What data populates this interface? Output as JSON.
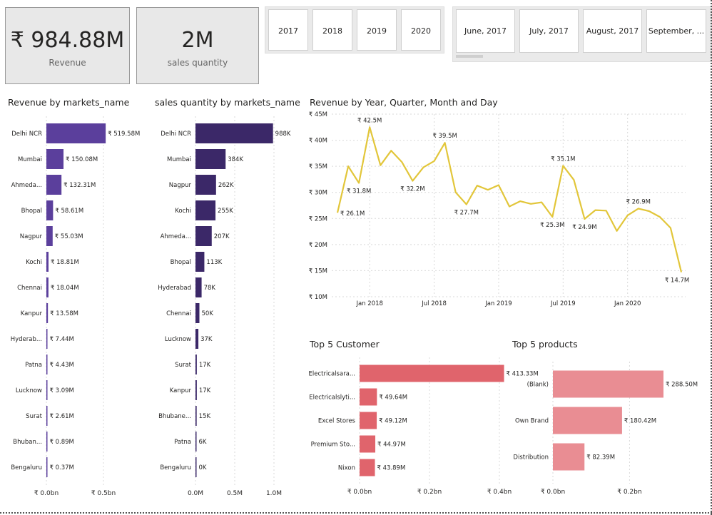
{
  "kpis": {
    "revenue": {
      "value": "₹ 984.88M",
      "label": "Revenue"
    },
    "quantity": {
      "value": "2M",
      "label": "sales quantity"
    }
  },
  "year_slicer": [
    "2017",
    "2018",
    "2019",
    "2020"
  ],
  "month_slicer": [
    "June, 2017",
    "July, 2017",
    "August, 2017",
    "September, ..."
  ],
  "colors": {
    "revenue_bar": "#5b3f9c",
    "quantity_bar": "#3b2868",
    "line": "#e2c63a",
    "customer_bar": "#e0646c",
    "product_bar": "#e98d93"
  },
  "charts": {
    "revenue_by_market": {
      "title": "Revenue by markets_name",
      "chart_data": {
        "type": "bar",
        "orientation": "horizontal",
        "categories": [
          "Delhi NCR",
          "Mumbai",
          "Ahmeda...",
          "Bhopal",
          "Nagpur",
          "Kochi",
          "Chennai",
          "Kanpur",
          "Hyderab...",
          "Patna",
          "Lucknow",
          "Surat",
          "Bhuban...",
          "Bengaluru"
        ],
        "values": [
          519.58,
          150.08,
          132.31,
          58.61,
          55.03,
          18.81,
          18.04,
          13.58,
          7.44,
          4.43,
          3.09,
          2.61,
          0.89,
          0.37
        ],
        "unit": "M",
        "data_labels": [
          "₹ 519.58M",
          "₹ 150.08M",
          "₹ 132.31M",
          "₹ 58.61M",
          "₹ 55.03M",
          "₹ 18.81M",
          "₹ 18.04M",
          "₹ 13.58M",
          "₹ 7.44M",
          "₹ 4.43M",
          "₹ 3.09M",
          "₹ 2.61M",
          "₹ 0.89M",
          "₹ 0.37M"
        ],
        "xlim": [
          0,
          600
        ],
        "xticks": [
          0,
          500
        ],
        "xtick_labels": [
          "₹ 0.0bn",
          "₹ 0.5bn"
        ]
      }
    },
    "quantity_by_market": {
      "title": "sales quantity by markets_name",
      "chart_data": {
        "type": "bar",
        "orientation": "horizontal",
        "categories": [
          "Delhi NCR",
          "Mumbai",
          "Nagpur",
          "Kochi",
          "Ahmeda...",
          "Bhopal",
          "Hyderabad",
          "Chennai",
          "Lucknow",
          "Surat",
          "Kanpur",
          "Bhubane...",
          "Patna",
          "Bengaluru"
        ],
        "values": [
          988,
          384,
          262,
          255,
          207,
          113,
          78,
          50,
          37,
          17,
          17,
          15,
          6,
          0
        ],
        "unit": "K",
        "data_labels": [
          "988K",
          "384K",
          "262K",
          "255K",
          "207K",
          "113K",
          "78K",
          "50K",
          "37K",
          "17K",
          "17K",
          "15K",
          "6K",
          "0K"
        ],
        "xlim": [
          0,
          1000
        ],
        "xticks": [
          0,
          500,
          1000
        ],
        "xtick_labels": [
          "0.0M",
          "0.5M",
          "1.0M"
        ]
      }
    },
    "revenue_trend": {
      "title": "Revenue by Year, Quarter, Month and Day",
      "chart_data": {
        "type": "line",
        "x": [
          "2017-10",
          "2017-11",
          "2017-12",
          "2018-01",
          "2018-02",
          "2018-03",
          "2018-04",
          "2018-05",
          "2018-06",
          "2018-07",
          "2018-08",
          "2018-09",
          "2018-10",
          "2018-11",
          "2018-12",
          "2019-01",
          "2019-02",
          "2019-03",
          "2019-04",
          "2019-05",
          "2019-06",
          "2019-07",
          "2019-08",
          "2019-09",
          "2019-10",
          "2019-11",
          "2019-12",
          "2020-01",
          "2020-02",
          "2020-03",
          "2020-04",
          "2020-05",
          "2020-06"
        ],
        "values": [
          26.1,
          35.0,
          31.8,
          42.5,
          35.2,
          38.0,
          35.8,
          32.2,
          34.8,
          36.0,
          39.5,
          30.0,
          27.7,
          31.3,
          30.5,
          31.4,
          27.3,
          28.3,
          27.8,
          28.1,
          25.3,
          35.1,
          32.4,
          24.9,
          26.6,
          26.5,
          22.6,
          25.6,
          26.9,
          26.4,
          25.3,
          23.2,
          14.7
        ],
        "unit": "M",
        "point_labels": [
          {
            "index": 0,
            "text": "₹ 26.1M",
            "pos": "right"
          },
          {
            "index": 2,
            "text": "₹ 31.8M",
            "pos": "below"
          },
          {
            "index": 3,
            "text": "₹ 42.5M",
            "pos": "above"
          },
          {
            "index": 7,
            "text": "₹ 32.2M",
            "pos": "below"
          },
          {
            "index": 10,
            "text": "₹ 39.5M",
            "pos": "above"
          },
          {
            "index": 12,
            "text": "₹ 27.7M",
            "pos": "below"
          },
          {
            "index": 20,
            "text": "₹ 25.3M",
            "pos": "below"
          },
          {
            "index": 21,
            "text": "₹ 35.1M",
            "pos": "above"
          },
          {
            "index": 23,
            "text": "₹ 24.9M",
            "pos": "below"
          },
          {
            "index": 28,
            "text": "₹ 26.9M",
            "pos": "above"
          },
          {
            "index": 32,
            "text": "₹ 14.7M",
            "pos": "below"
          }
        ],
        "ylim": [
          10,
          45
        ],
        "yticks": [
          10,
          15,
          20,
          25,
          30,
          35,
          40,
          45
        ],
        "ytick_labels": [
          "₹ 10M",
          "₹ 15M",
          "₹ 20M",
          "₹ 25M",
          "₹ 30M",
          "₹ 35M",
          "₹ 40M",
          "₹ 45M"
        ],
        "xtick_index": [
          3,
          9,
          15,
          21,
          27
        ],
        "xtick_labels": [
          "Jan 2018",
          "Jul 2018",
          "Jan 2019",
          "Jul 2019",
          "Jan 2020"
        ],
        "grid": true
      }
    },
    "top_customers": {
      "title": "Top 5 Customer",
      "chart_data": {
        "type": "bar",
        "orientation": "horizontal",
        "categories": [
          "Electricalsara...",
          "Electricalslyti...",
          "Excel Stores",
          "Premium Sto...",
          "Nixon"
        ],
        "values": [
          413.33,
          49.64,
          49.12,
          44.97,
          43.89
        ],
        "unit": "M",
        "data_labels": [
          "₹ 413.33M",
          "₹ 49.64M",
          "₹ 49.12M",
          "₹ 44.97M",
          "₹ 43.89M"
        ],
        "xlim": [
          0,
          500
        ],
        "xticks": [
          0,
          200,
          400
        ],
        "xtick_labels": [
          "₹ 0.0bn",
          "₹ 0.2bn",
          "₹ 0.4bn"
        ]
      }
    },
    "top_products": {
      "title": "Top 5 products",
      "chart_data": {
        "type": "bar",
        "orientation": "horizontal",
        "categories": [
          "(Blank)",
          "Own Brand",
          "Distribution"
        ],
        "values": [
          288.5,
          180.42,
          82.39
        ],
        "unit": "M",
        "data_labels": [
          "₹ 288.50M",
          "₹ 180.42M",
          "₹ 82.39M"
        ],
        "xlim": [
          0,
          350
        ],
        "xticks": [
          0,
          200
        ],
        "xtick_labels": [
          "₹ 0.0bn",
          "₹ 0.2bn"
        ]
      }
    }
  }
}
